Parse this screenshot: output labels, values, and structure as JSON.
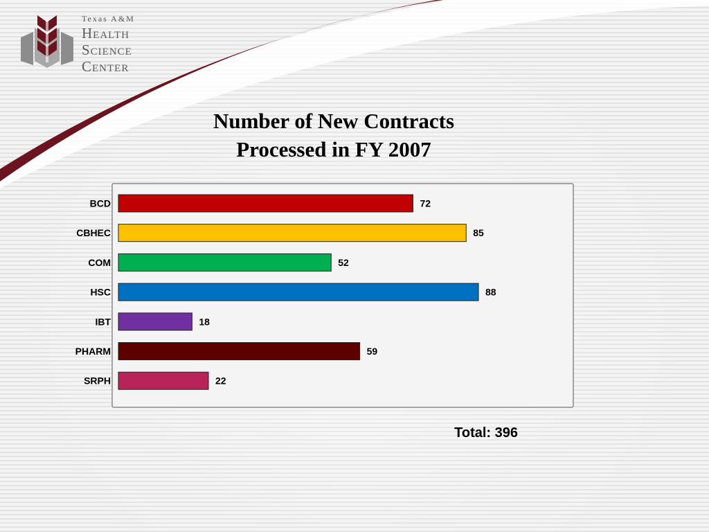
{
  "logo": {
    "lines": [
      "Texas A&M",
      "Health",
      "Science",
      "Center"
    ],
    "colors": {
      "maroon": "#6b1420",
      "gray": "#8c8c8c"
    }
  },
  "swoosh_color": "#6b1420",
  "title_lines": [
    "Number of New Contracts",
    "Processed in FY 2007"
  ],
  "total_text": "Total: 396",
  "chart_data": {
    "type": "bar",
    "orientation": "horizontal",
    "title": "Number of New Contracts Processed in FY 2007",
    "categories": [
      "BCD",
      "CBHEC",
      "COM",
      "HSC",
      "IBT",
      "PHARM",
      "SRPH"
    ],
    "values": [
      72,
      85,
      52,
      88,
      18,
      59,
      22
    ],
    "colors": [
      "#c00000",
      "#ffc000",
      "#00b050",
      "#0070c0",
      "#7030a0",
      "#5c0000",
      "#b8235a"
    ],
    "xlim": [
      0,
      110
    ],
    "grid": false,
    "legend": "none",
    "data_labels": true
  }
}
